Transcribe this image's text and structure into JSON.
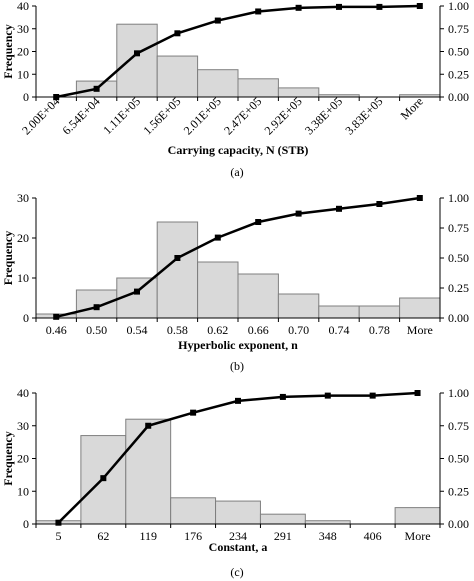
{
  "chart_data": [
    {
      "type": "bar",
      "panel": "(a)",
      "xlabel": "Carrying capacity, N (STB)",
      "ylabel": "Frequency",
      "categories": [
        "2.00E+04",
        "6.54E+04",
        "1.11E+05",
        "1.56E+05",
        "2.01E+05",
        "2.47E+05",
        "2.92E+05",
        "3.38E+05",
        "3.83E+05",
        "More"
      ],
      "ylim": [
        0,
        40
      ],
      "yticks": [
        0,
        10,
        20,
        30,
        40
      ],
      "y2lim": [
        0,
        1
      ],
      "y2ticks": [
        "0.00",
        "0.25",
        "0.50",
        "0.75",
        "1.00"
      ],
      "series": [
        {
          "kind": "histogram",
          "values": [
            0,
            7,
            32,
            18,
            12,
            8,
            4,
            1,
            0,
            1
          ]
        },
        {
          "kind": "cumulative",
          "axis": "right",
          "values": [
            0.0,
            0.09,
            0.48,
            0.7,
            0.84,
            0.94,
            0.98,
            0.99,
            0.99,
            1.0
          ]
        }
      ]
    },
    {
      "type": "bar",
      "panel": "(b)",
      "xlabel": "Hyperbolic exponent, n",
      "ylabel": "Frequency",
      "categories": [
        "0.46",
        "0.50",
        "0.54",
        "0.58",
        "0.62",
        "0.66",
        "0.70",
        "0.74",
        "0.78",
        "More"
      ],
      "ylim": [
        0,
        30
      ],
      "yticks": [
        0,
        10,
        20,
        30
      ],
      "y2lim": [
        0,
        1
      ],
      "y2ticks": [
        "0.00",
        "0.25",
        "0.50",
        "0.75",
        "1.00"
      ],
      "series": [
        {
          "kind": "histogram",
          "values": [
            1,
            7,
            10,
            24,
            14,
            11,
            6,
            3,
            3,
            5
          ]
        },
        {
          "kind": "cumulative",
          "axis": "right",
          "values": [
            0.01,
            0.09,
            0.22,
            0.5,
            0.67,
            0.8,
            0.87,
            0.91,
            0.95,
            1.0
          ]
        }
      ]
    },
    {
      "type": "bar",
      "panel": "(c)",
      "xlabel": "Constant, a",
      "ylabel": "Frequency",
      "categories": [
        "5",
        "62",
        "119",
        "176",
        "234",
        "291",
        "348",
        "406",
        "More"
      ],
      "ylim": [
        0,
        40
      ],
      "yticks": [
        0,
        10,
        20,
        30,
        40
      ],
      "y2lim": [
        0,
        1
      ],
      "y2ticks": [
        "0.00",
        "0.25",
        "0.50",
        "0.75",
        "1.00"
      ],
      "series": [
        {
          "kind": "histogram",
          "values": [
            1,
            27,
            32,
            8,
            7,
            3,
            1,
            0,
            5
          ]
        },
        {
          "kind": "cumulative",
          "axis": "right",
          "values": [
            0.01,
            0.35,
            0.75,
            0.85,
            0.94,
            0.97,
            0.98,
            0.98,
            1.0
          ]
        }
      ]
    }
  ]
}
